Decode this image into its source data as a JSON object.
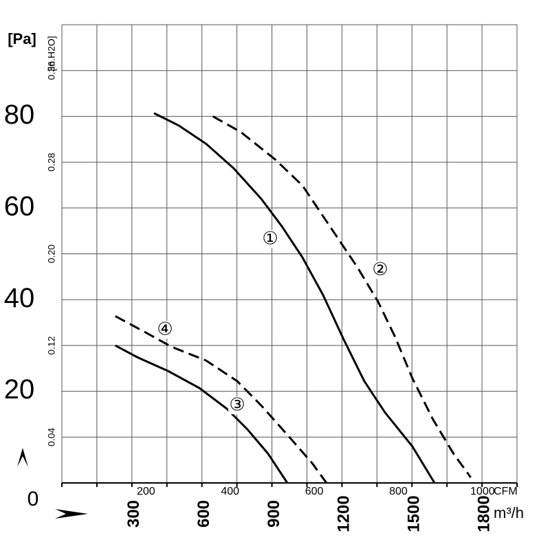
{
  "chart_data": {
    "type": "line",
    "y_label": "[Pa]",
    "y2_label": "[in.H2O]",
    "x_label": "CFM",
    "x2_label": "m³/h",
    "xlim": [
      0,
      1082
    ],
    "xticks": [
      200,
      400,
      600,
      800,
      1000
    ],
    "x2lim": [
      0,
      1950
    ],
    "x2ticks": [
      300,
      600,
      900,
      1200,
      1500,
      1800
    ],
    "ylim": [
      0,
      100
    ],
    "yticks": [
      0,
      20,
      40,
      60,
      80
    ],
    "y2lim": [
      0,
      0.4
    ],
    "y2ticks": [
      0.04,
      0.12,
      {
        "value": 0.2,
        "label": "0.20"
      },
      0.28,
      0.36
    ],
    "grid": true,
    "series": [
      {
        "name": "①",
        "color": "#000000",
        "dashed": false,
        "x": [
          219,
          278,
          343,
          408,
          474,
          523,
          572,
          621,
          670,
          719,
          768,
          833,
          886
        ],
        "values": [
          80.7,
          78,
          74,
          68.7,
          62,
          56,
          49.2,
          41,
          31.3,
          22.2,
          15.4,
          8,
          0
        ]
      },
      {
        "name": "②",
        "color": "#000000",
        "dashed": true,
        "x": [
          359,
          425,
          507,
          572,
          654,
          703,
          752,
          792,
          833,
          882,
          931,
          972
        ],
        "values": [
          80,
          76.6,
          70.6,
          64.9,
          53.7,
          47,
          39.5,
          31.9,
          22.9,
          13.9,
          6.4,
          1.2
        ]
      },
      {
        "name": "③",
        "color": "#000000",
        "dashed": false,
        "x": [
          127,
          180,
          253,
          327,
          392,
          441,
          490,
          536
        ],
        "values": [
          30,
          27.4,
          24.4,
          20.7,
          16.2,
          11.7,
          6.4,
          0
        ]
      },
      {
        "name": "④",
        "color": "#000000",
        "dashed": true,
        "x": [
          127,
          196,
          261,
          343,
          417,
          474,
          539,
          596,
          629
        ],
        "values": [
          36.4,
          33,
          29.7,
          26.7,
          22.2,
          16.9,
          10.2,
          4.2,
          0
        ]
      }
    ]
  }
}
